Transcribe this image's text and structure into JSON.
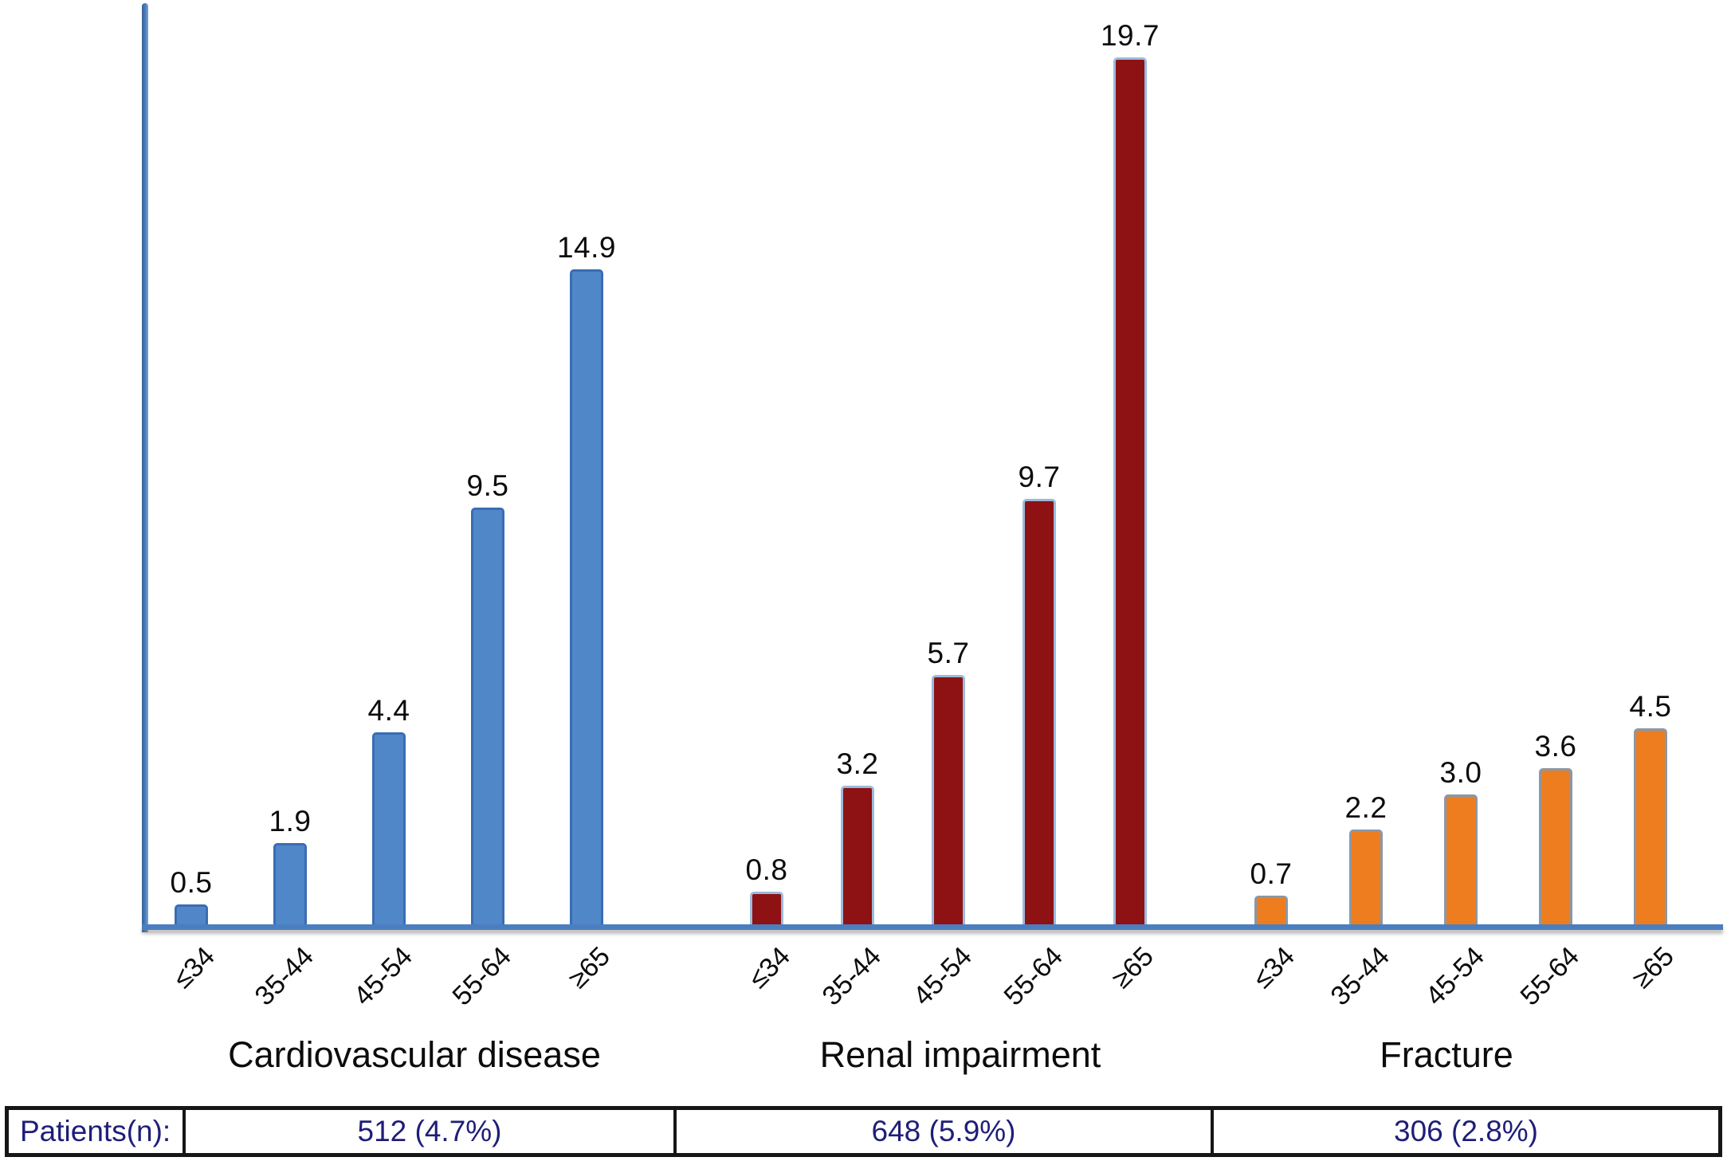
{
  "chart_data": {
    "type": "bar",
    "title": "",
    "categories": [
      "≤34",
      "35-44",
      "45-54",
      "55-64",
      "≥65"
    ],
    "series": [
      {
        "name": "Cardiovascular disease",
        "values": [
          0.5,
          1.9,
          4.4,
          9.5,
          14.9
        ],
        "labels": [
          "0.5",
          "1.9",
          "4.4",
          "9.5",
          "14.9"
        ],
        "fill": "#4f87c9",
        "border": "#3a6db3",
        "patients": "512 (4.7%)"
      },
      {
        "name": "Renal impairment",
        "values": [
          0.8,
          3.2,
          5.7,
          9.7,
          19.7
        ],
        "labels": [
          "0.8",
          "3.2",
          "5.7",
          "9.7",
          "19.7"
        ],
        "fill": "#8e1113",
        "border": "#9bbbdc",
        "patients": "648 (5.9%)"
      },
      {
        "name": "Fracture",
        "values": [
          0.7,
          2.2,
          3.0,
          3.6,
          4.5
        ],
        "labels": [
          "0.7",
          "2.2",
          "3.0",
          "3.6",
          "4.5"
        ],
        "fill": "#ed7d1f",
        "border": "#8a98a8",
        "patients": "306 (2.8%)"
      }
    ],
    "ylim": [
      0,
      20.9
    ],
    "grid": false,
    "legend_position": "none",
    "axis_color": "#4a7ec0"
  },
  "table": {
    "row_label": "Patients(n):",
    "cells": [
      "512 (4.7%)",
      "648 (5.9%)",
      "306 (2.8%)"
    ],
    "text_color": "#1e1e78"
  }
}
